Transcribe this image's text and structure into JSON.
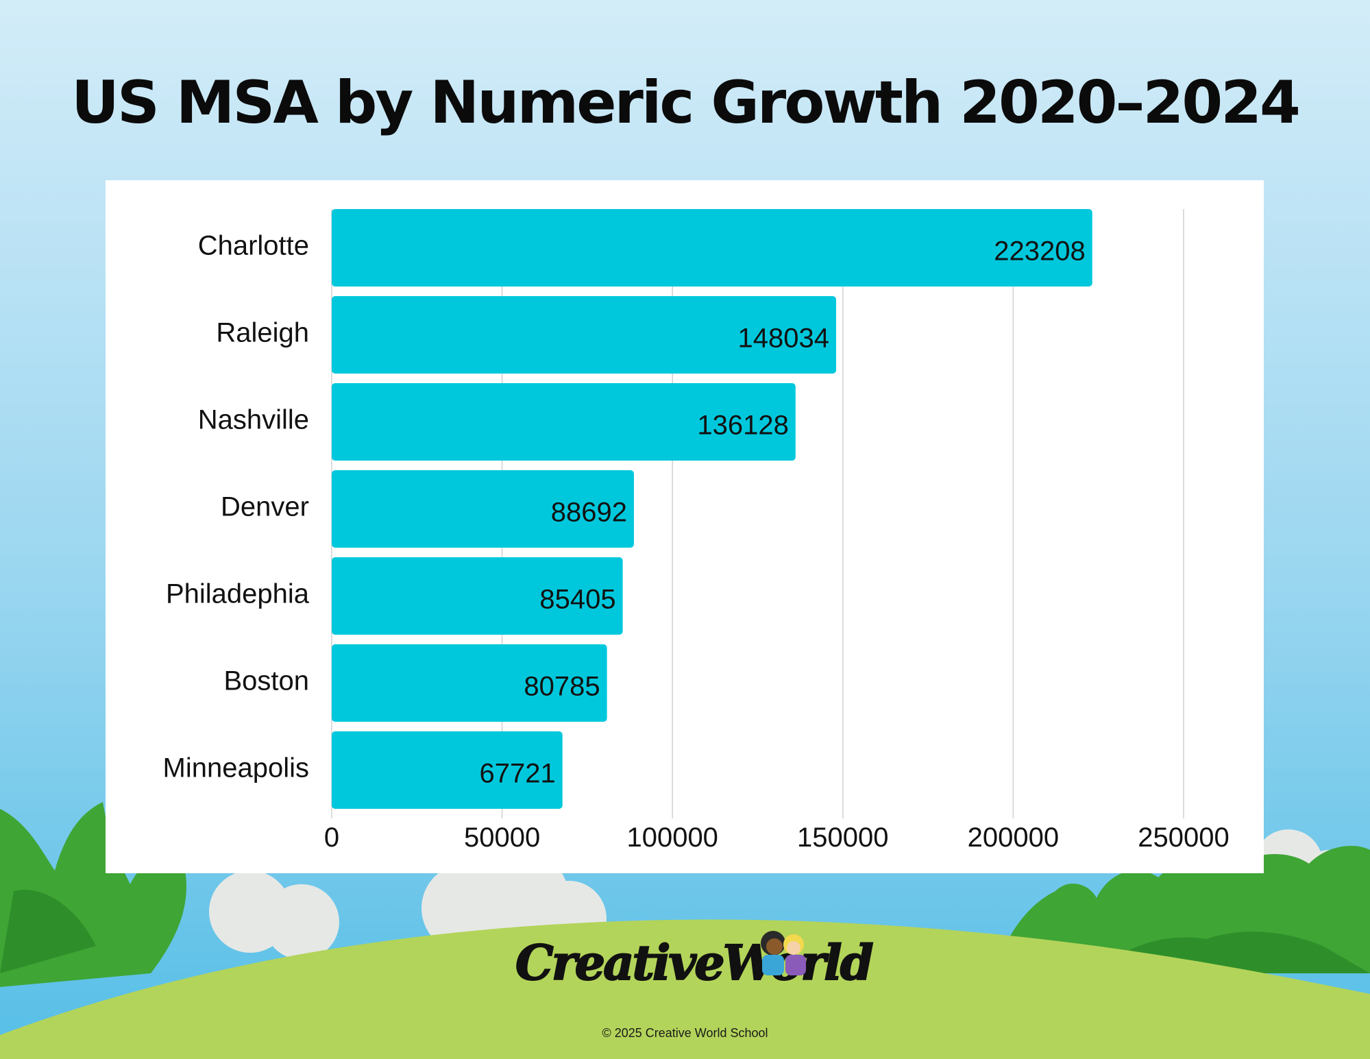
{
  "title": "US MSA by Numeric Growth 2020–2024",
  "colors": {
    "bar": "#00C8DC",
    "sky_top": "#CFEAF7",
    "sky_bottom": "#59C0E6",
    "hill": "#B3D45A",
    "grass": "#3FA535",
    "grid": "#D0D0D0"
  },
  "chart_data": {
    "type": "bar",
    "orientation": "horizontal",
    "categories": [
      "Charlotte",
      "Raleigh",
      "Nashville",
      "Denver",
      "Philadephia",
      "Boston",
      "Minneapolis"
    ],
    "values": [
      223208,
      148034,
      136128,
      88692,
      85405,
      80785,
      67721
    ],
    "xlim": [
      0,
      250000
    ],
    "xticks": [
      0,
      50000,
      100000,
      150000,
      200000,
      250000
    ],
    "data_labels": true,
    "grid": "vertical",
    "legend": "none"
  },
  "logo": {
    "text": "CreativeWorld"
  },
  "copyright": "© 2025 Creative World School"
}
